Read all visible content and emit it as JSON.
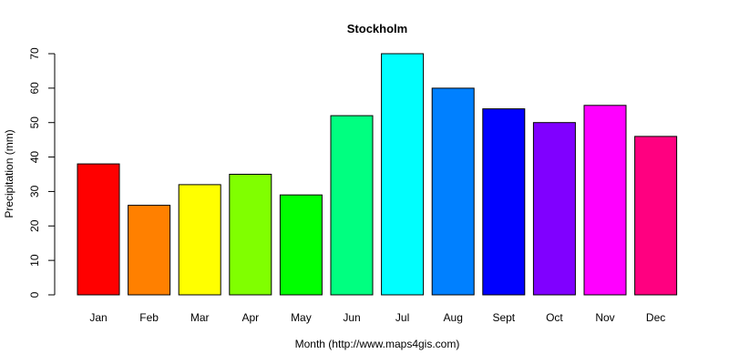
{
  "chart_data": {
    "type": "bar",
    "title": "Stockholm",
    "xlabel": "Month (http://www.maps4gis.com)",
    "ylabel": "Precipitation (mm)",
    "categories": [
      "Jan",
      "Feb",
      "Mar",
      "Apr",
      "May",
      "Jun",
      "Jul",
      "Aug",
      "Sept",
      "Oct",
      "Nov",
      "Dec"
    ],
    "values": [
      38,
      26,
      32,
      35,
      29,
      52,
      70,
      60,
      54,
      50,
      55,
      46
    ],
    "colors": [
      "#FF0000",
      "#FF8000",
      "#FFFF00",
      "#80FF00",
      "#00FF00",
      "#00FF80",
      "#00FFFF",
      "#0080FF",
      "#0000FF",
      "#8000FF",
      "#FF00FF",
      "#FF0080"
    ],
    "yticks": [
      0,
      10,
      20,
      30,
      40,
      50,
      60,
      70
    ],
    "ylim": [
      0,
      70
    ],
    "grid": false,
    "legend": "none"
  }
}
